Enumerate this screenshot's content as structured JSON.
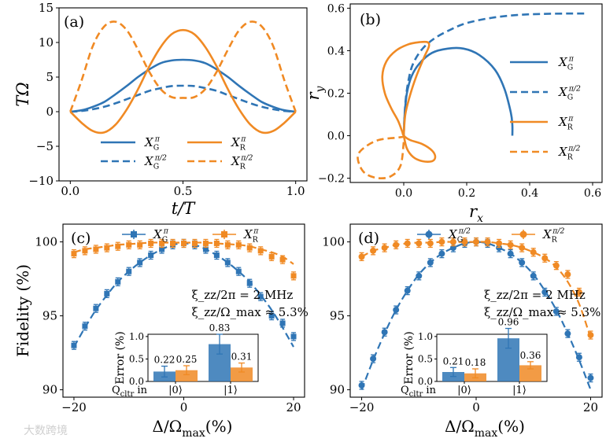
{
  "colors": {
    "blue": "#2f75b5",
    "orange": "#f08a24",
    "axis": "#000000"
  },
  "watermark": "大数跨境",
  "chart_data": [
    {
      "panel": "(a)",
      "type": "line",
      "xlabel": "t/T",
      "ylabel": "TΩ",
      "xlim": [
        -0.05,
        1.05
      ],
      "ylim": [
        -10,
        15
      ],
      "xticks": [
        "0.0",
        "0.5",
        "1.0"
      ],
      "yticks": [
        "−10",
        "−5",
        "0",
        "5",
        "10",
        "15"
      ],
      "series": [
        {
          "name": "X_G^π",
          "sub": "G",
          "sup": "π",
          "color": "blue",
          "dash": false,
          "x": [
            0,
            0.05,
            0.1,
            0.15,
            0.2,
            0.25,
            0.3,
            0.35,
            0.4,
            0.45,
            0.5,
            0.55,
            0.6,
            0.65,
            0.7,
            0.75,
            0.8,
            0.85,
            0.9,
            0.95,
            1.0
          ],
          "y": [
            0,
            0.2,
            0.7,
            1.4,
            2.5,
            3.7,
            5.0,
            6.1,
            7.0,
            7.4,
            7.5,
            7.4,
            7.0,
            6.1,
            5.0,
            3.7,
            2.5,
            1.4,
            0.7,
            0.2,
            0
          ]
        },
        {
          "name": "X_G^{π/2}",
          "sub": "G",
          "sup": "π/2",
          "color": "blue",
          "dash": true,
          "x": [
            0,
            0.05,
            0.1,
            0.15,
            0.2,
            0.25,
            0.3,
            0.35,
            0.4,
            0.45,
            0.5,
            0.55,
            0.6,
            0.65,
            0.7,
            0.75,
            0.8,
            0.85,
            0.9,
            0.95,
            1.0
          ],
          "y": [
            0,
            0.1,
            0.35,
            0.7,
            1.2,
            1.8,
            2.4,
            3.0,
            3.4,
            3.7,
            3.75,
            3.7,
            3.4,
            3.0,
            2.4,
            1.8,
            1.2,
            0.7,
            0.35,
            0.1,
            0
          ]
        },
        {
          "name": "X_R^π",
          "sub": "R",
          "sup": "π",
          "color": "orange",
          "dash": false,
          "x": [
            0,
            0.05,
            0.1,
            0.15,
            0.2,
            0.25,
            0.3,
            0.35,
            0.4,
            0.45,
            0.5,
            0.55,
            0.6,
            0.65,
            0.7,
            0.75,
            0.8,
            0.85,
            0.9,
            0.95,
            1.0
          ],
          "y": [
            0,
            -1.6,
            -2.8,
            -3.0,
            -1.9,
            0.3,
            3.2,
            6.5,
            9.3,
            11.2,
            11.8,
            11.2,
            9.3,
            6.5,
            3.2,
            0.3,
            -1.9,
            -3.0,
            -2.8,
            -1.6,
            0
          ]
        },
        {
          "name": "X_R^{π/2}",
          "sub": "R",
          "sup": "π/2",
          "color": "orange",
          "dash": true,
          "x": [
            0,
            0.05,
            0.1,
            0.15,
            0.2,
            0.25,
            0.3,
            0.35,
            0.4,
            0.45,
            0.5,
            0.55,
            0.6,
            0.65,
            0.7,
            0.75,
            0.8,
            0.85,
            0.9,
            0.95,
            1.0
          ],
          "y": [
            0,
            4.5,
            9.5,
            12.3,
            13.0,
            11.8,
            9.0,
            5.8,
            3.3,
            2.1,
            2.0,
            2.1,
            3.3,
            5.8,
            9.0,
            11.8,
            13.0,
            12.3,
            9.5,
            4.5,
            0
          ]
        }
      ]
    },
    {
      "panel": "(b)",
      "type": "line",
      "xlabel": "r_x",
      "ylabel": "r_y",
      "xlim": [
        -0.17,
        0.63
      ],
      "ylim": [
        -0.22,
        0.62
      ],
      "xticks": [
        "0.0",
        "0.2",
        "0.4",
        "0.6"
      ],
      "yticks": [
        "−0.2",
        "0.0",
        "0.2",
        "0.4",
        "0.6"
      ],
      "series": [
        {
          "name": "X_G^π",
          "sub": "G",
          "sup": "π",
          "color": "blue",
          "dash": false,
          "x": [
            0,
            0.003,
            0.01,
            0.025,
            0.05,
            0.09,
            0.14,
            0.19,
            0.24,
            0.29,
            0.32,
            0.34,
            0.345,
            0.345
          ],
          "y": [
            0,
            0.1,
            0.2,
            0.28,
            0.34,
            0.39,
            0.41,
            0.41,
            0.38,
            0.31,
            0.22,
            0.11,
            0.05,
            0
          ]
        },
        {
          "name": "X_G^{π/2}",
          "sub": "G",
          "sup": "π/2",
          "color": "blue",
          "dash": true,
          "x": [
            0,
            0.005,
            0.015,
            0.03,
            0.06,
            0.1,
            0.15,
            0.2,
            0.28,
            0.36,
            0.44,
            0.52,
            0.58
          ],
          "y": [
            0,
            0.15,
            0.26,
            0.34,
            0.41,
            0.46,
            0.5,
            0.53,
            0.555,
            0.568,
            0.573,
            0.575,
            0.575
          ]
        },
        {
          "name": "X_R^π",
          "sub": "R",
          "sup": "π",
          "color": "orange",
          "dash": false,
          "x": [
            0,
            0.005,
            0.02,
            0.04,
            0.065,
            0.08,
            0.075,
            0.05,
            0.015,
            -0.025,
            -0.055,
            -0.068,
            -0.06,
            -0.04,
            -0.018,
            -0.005,
            0,
            0.02,
            0.06,
            0.09,
            0.1,
            0.09,
            0.06,
            0.03,
            0.01,
            0
          ],
          "y": [
            0,
            0.1,
            0.19,
            0.28,
            0.37,
            0.42,
            0.44,
            0.44,
            0.43,
            0.4,
            0.35,
            0.28,
            0.2,
            0.13,
            0.07,
            0.02,
            0,
            -0.02,
            -0.04,
            -0.07,
            -0.1,
            -0.12,
            -0.12,
            -0.1,
            -0.06,
            0
          ]
        },
        {
          "name": "X_R^{π/2}",
          "sub": "R",
          "sup": "π/2",
          "color": "orange",
          "dash": true,
          "x": [
            0,
            0.0,
            -0.03,
            -0.08,
            -0.12,
            -0.145,
            -0.14,
            -0.12,
            -0.08,
            -0.04,
            -0.01,
            0
          ],
          "y": [
            0,
            -0.005,
            -0.01,
            -0.02,
            -0.05,
            -0.09,
            -0.14,
            -0.18,
            -0.2,
            -0.19,
            -0.14,
            -0.03
          ]
        }
      ]
    },
    {
      "panel": "(c)",
      "type": "scatter",
      "xlabel": "Δ/Ω_max(%)",
      "ylabel": "Fidelity (%)",
      "xlim": [
        -22,
        22
      ],
      "ylim": [
        89.5,
        101.2
      ],
      "xticks": [
        "−20",
        "0",
        "20"
      ],
      "yticks": [
        "90",
        "95",
        "100"
      ],
      "marker": "square",
      "legend": [
        {
          "sub": "G",
          "sup": "π",
          "color": "blue"
        },
        {
          "sub": "R",
          "sup": "π",
          "color": "orange"
        }
      ],
      "annotations": [
        "ξ_zz/2π = 2 MHz",
        "ξ_zz/Ω_max ≈ 5.3%"
      ],
      "series": [
        {
          "name": "X_G^π",
          "color": "blue",
          "x": [
            -20,
            -18,
            -16,
            -14,
            -12,
            -10,
            -8,
            -6,
            -4,
            -2,
            0,
            2,
            4,
            6,
            8,
            10,
            12,
            14,
            16,
            18,
            20
          ],
          "y": [
            93.0,
            94.3,
            95.5,
            96.5,
            97.3,
            98.0,
            98.6,
            99.1,
            99.5,
            99.8,
            99.9,
            99.8,
            99.5,
            99.1,
            98.6,
            98.0,
            97.2,
            96.3,
            95.0,
            94.5,
            93.6
          ],
          "fit": [
            92.9,
            94.2,
            95.4,
            96.4,
            97.3,
            98.0,
            98.6,
            99.1,
            99.5,
            99.8,
            99.9,
            99.8,
            99.5,
            99.1,
            98.6,
            98.0,
            97.3,
            96.4,
            95.4,
            94.2,
            92.9
          ]
        },
        {
          "name": "X_R^π",
          "color": "orange",
          "x": [
            -20,
            -18,
            -16,
            -14,
            -12,
            -10,
            -8,
            -6,
            -4,
            -2,
            0,
            2,
            4,
            6,
            8,
            10,
            12,
            14,
            16,
            18,
            20
          ],
          "y": [
            99.2,
            99.4,
            99.5,
            99.6,
            99.7,
            99.8,
            99.8,
            99.9,
            99.9,
            99.9,
            99.9,
            99.9,
            99.9,
            99.9,
            99.8,
            99.8,
            99.6,
            99.4,
            99.0,
            98.8,
            97.7
          ],
          "fit": [
            99.3,
            99.5,
            99.6,
            99.7,
            99.8,
            99.85,
            99.9,
            99.95,
            99.95,
            99.95,
            99.95,
            99.95,
            99.95,
            99.9,
            99.85,
            99.8,
            99.7,
            99.5,
            99.3,
            99.0,
            98.5
          ]
        }
      ],
      "inset": {
        "ylabel": "Error (%)",
        "xlabel": "Q_cltr  in",
        "yticks": [
          "0.0",
          "0.5",
          "1.0"
        ],
        "ylim": [
          0,
          1.05
        ],
        "groups": [
          "|0⟩",
          "|1⟩"
        ],
        "values": {
          "blue": [
            0.22,
            0.83
          ],
          "orange": [
            0.25,
            0.31
          ]
        },
        "errors": {
          "blue": [
            0.12,
            0.22
          ],
          "orange": [
            0.1,
            0.1
          ]
        },
        "labels": [
          "0.22",
          "0.25",
          "0.83",
          "0.31"
        ]
      }
    },
    {
      "panel": "(d)",
      "type": "scatter",
      "xlabel": "Δ/Ω_max(%)",
      "ylabel": "",
      "xlim": [
        -22,
        22
      ],
      "ylim": [
        89.5,
        101.2
      ],
      "xticks": [
        "−20",
        "0",
        "20"
      ],
      "yticks": [
        "90",
        "95",
        "100"
      ],
      "marker": "circle",
      "legend": [
        {
          "sub": "G",
          "sup": "π/2",
          "color": "blue"
        },
        {
          "sub": "R",
          "sup": "π/2",
          "color": "orange"
        }
      ],
      "annotations": [
        "ξ_zz/2π = 2 MHz",
        "ξ_zz/Ω_max ≈ 5.3%"
      ],
      "series": [
        {
          "name": "X_G^{π/2}",
          "color": "blue",
          "x": [
            -20,
            -18,
            -16,
            -14,
            -12,
            -10,
            -8,
            -6,
            -4,
            -2,
            0,
            2,
            4,
            6,
            8,
            10,
            12,
            14,
            16,
            18,
            20
          ],
          "y": [
            90.3,
            92.1,
            93.9,
            95.4,
            96.7,
            97.7,
            98.6,
            99.2,
            99.6,
            99.9,
            100.0,
            99.9,
            99.6,
            99.2,
            98.6,
            97.7,
            96.6,
            95.3,
            93.8,
            92.2,
            90.8
          ],
          "fit": [
            90.0,
            92.0,
            93.8,
            95.4,
            96.7,
            97.8,
            98.6,
            99.2,
            99.6,
            99.9,
            100.0,
            99.9,
            99.6,
            99.2,
            98.6,
            97.8,
            96.7,
            95.4,
            93.8,
            92.0,
            90.0
          ]
        },
        {
          "name": "X_R^{π/2}",
          "color": "orange",
          "x": [
            -20,
            -18,
            -16,
            -14,
            -12,
            -10,
            -8,
            -6,
            -4,
            -2,
            0,
            2,
            4,
            6,
            8,
            10,
            12,
            14,
            16,
            18,
            20
          ],
          "y": [
            99.0,
            99.4,
            99.6,
            99.8,
            99.9,
            99.9,
            99.9,
            100.0,
            100.0,
            100.0,
            100.0,
            100.0,
            99.9,
            99.8,
            99.6,
            99.3,
            98.9,
            98.4,
            97.8,
            96.6,
            93.7
          ],
          "fit": [
            99.0,
            99.4,
            99.6,
            99.8,
            99.9,
            99.95,
            99.95,
            100.0,
            100.0,
            100.0,
            100.0,
            100.0,
            99.9,
            99.8,
            99.6,
            99.3,
            98.9,
            98.3,
            97.3,
            95.8,
            93.5
          ]
        }
      ],
      "inset": {
        "ylabel": "Error (%)",
        "xlabel": "Q_cltr  in",
        "yticks": [
          "0.0",
          "0.5",
          "1.0"
        ],
        "ylim": [
          0,
          1.05
        ],
        "groups": [
          "|0⟩",
          "|1⟩"
        ],
        "values": {
          "blue": [
            0.21,
            0.96
          ],
          "orange": [
            0.18,
            0.36
          ]
        },
        "errors": {
          "blue": [
            0.1,
            0.22
          ],
          "orange": [
            0.1,
            0.08
          ]
        },
        "labels": [
          "0.21",
          "0.18",
          "0.96",
          "0.36"
        ]
      }
    }
  ]
}
